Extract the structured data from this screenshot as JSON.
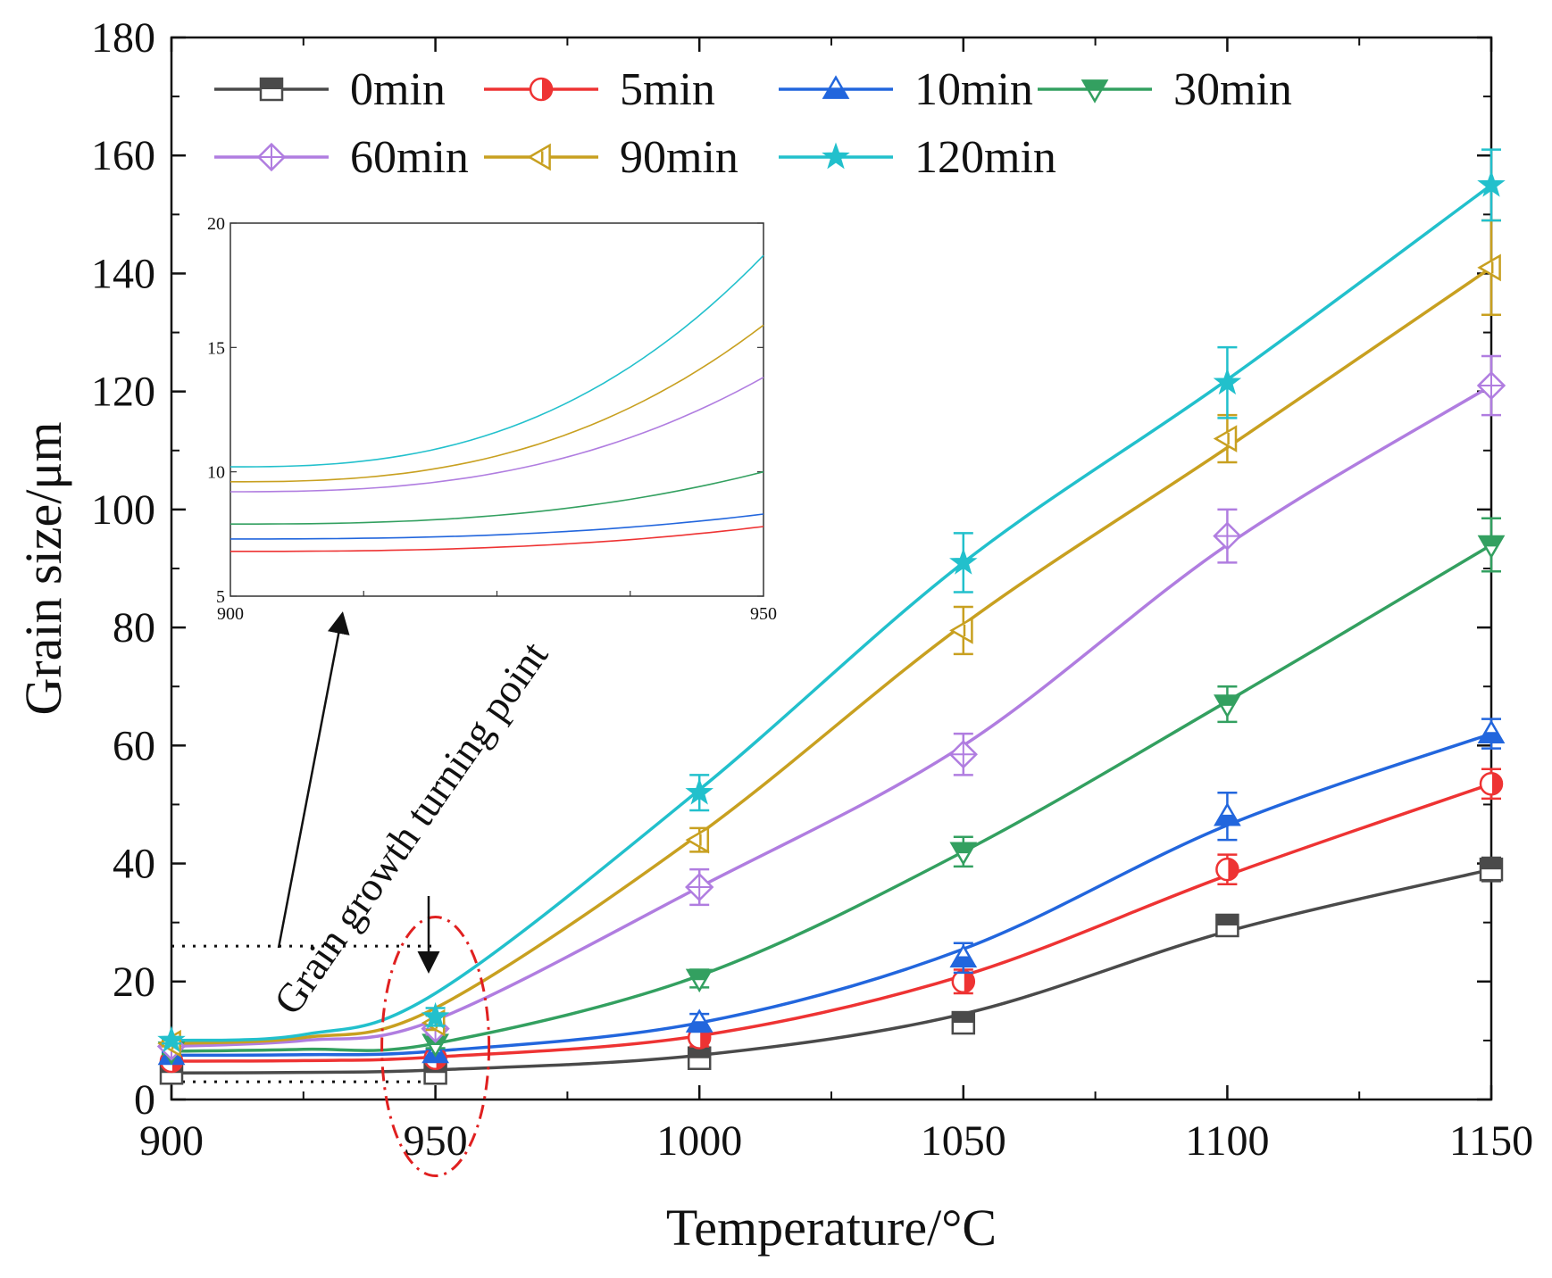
{
  "chart_data": {
    "type": "line",
    "xlabel": "Temperature/°C",
    "ylabel": "Grain size/μm",
    "xlim": [
      900,
      1150
    ],
    "ylim": [
      0,
      180
    ],
    "xticks": [
      900,
      950,
      1000,
      1050,
      1100,
      1150
    ],
    "yticks": [
      0,
      20,
      40,
      60,
      80,
      100,
      120,
      140,
      160,
      180
    ],
    "grid": false,
    "legend_position": "top",
    "x": [
      900,
      950,
      1000,
      1050,
      1100,
      1150
    ],
    "series": [
      {
        "name": "0min",
        "color": "#4a4a4a",
        "marker": "square-half",
        "values": [
          4.5,
          4.5,
          7,
          13,
          29.5,
          39
        ],
        "errors": [
          0.5,
          0.5,
          1,
          1.5,
          1.5,
          2
        ],
        "curve": [
          4.5,
          4.6,
          5.0,
          7.5,
          14.5,
          28.5,
          39
        ]
      },
      {
        "name": "5min",
        "color": "#ee3333",
        "marker": "circle-half",
        "values": [
          6.5,
          7,
          10.5,
          20,
          39,
          53.5
        ],
        "errors": [
          0.5,
          0.7,
          1.5,
          2,
          2.5,
          2.5
        ],
        "curve": [
          6.5,
          6.6,
          7.2,
          10.8,
          21,
          38,
          53.5
        ]
      },
      {
        "name": "10min",
        "color": "#2266dd",
        "marker": "triangle-up",
        "values": [
          7.5,
          7.8,
          13,
          24,
          48,
          62
        ],
        "errors": [
          0.5,
          0.7,
          1.5,
          2.5,
          4,
          2.5
        ],
        "curve": [
          7.5,
          7.6,
          8.2,
          13,
          25.5,
          46.5,
          62
        ]
      },
      {
        "name": "30min",
        "color": "#33a060",
        "marker": "triangle-down",
        "values": [
          8.2,
          9.5,
          20.5,
          42,
          67,
          94
        ],
        "errors": [
          0.5,
          0.8,
          1.5,
          2.5,
          3,
          4.5
        ],
        "curve": [
          8.2,
          8.5,
          9.5,
          21,
          42,
          67.5,
          94
        ]
      },
      {
        "name": "60min",
        "color": "#b07de0",
        "marker": "diamond-cross",
        "values": [
          9,
          12,
          36,
          58.5,
          95.5,
          121
        ],
        "errors": [
          0.5,
          1,
          3,
          3.5,
          4.5,
          5
        ],
        "curve": [
          9,
          10,
          13.5,
          36,
          60,
          94,
          121
        ]
      },
      {
        "name": "90min",
        "color": "#c8a020",
        "marker": "triangle-left",
        "values": [
          9.5,
          13,
          44,
          79.5,
          112,
          141
        ],
        "errors": [
          0.5,
          1.2,
          2,
          4,
          4,
          8
        ],
        "curve": [
          9.5,
          10.5,
          15.5,
          45,
          80.5,
          110.5,
          141
        ]
      },
      {
        "name": "120min",
        "color": "#22c0cc",
        "marker": "star",
        "values": [
          10,
          14,
          52,
          91,
          121.5,
          155
        ],
        "errors": [
          0.5,
          1.5,
          3,
          5,
          6,
          6
        ],
        "curve": [
          10,
          11,
          18,
          52.5,
          91,
          122,
          155
        ]
      }
    ],
    "annotation": {
      "text": "Grain growth turning point"
    },
    "inset": {
      "xlim": [
        900,
        950
      ],
      "ylim": [
        5,
        20
      ],
      "xticks": [
        900,
        950
      ],
      "yticks": [
        5,
        10,
        15,
        20
      ],
      "lines": [
        {
          "series": "5min",
          "start": 6.8,
          "end": 7.8
        },
        {
          "series": "10min",
          "start": 7.3,
          "end": 8.3
        },
        {
          "series": "30min",
          "start": 7.9,
          "end": 10.0
        },
        {
          "series": "60min",
          "start": 9.2,
          "end": 13.8
        },
        {
          "series": "90min",
          "start": 9.6,
          "end": 15.9
        },
        {
          "series": "120min",
          "start": 10.2,
          "end": 18.7
        }
      ]
    }
  }
}
